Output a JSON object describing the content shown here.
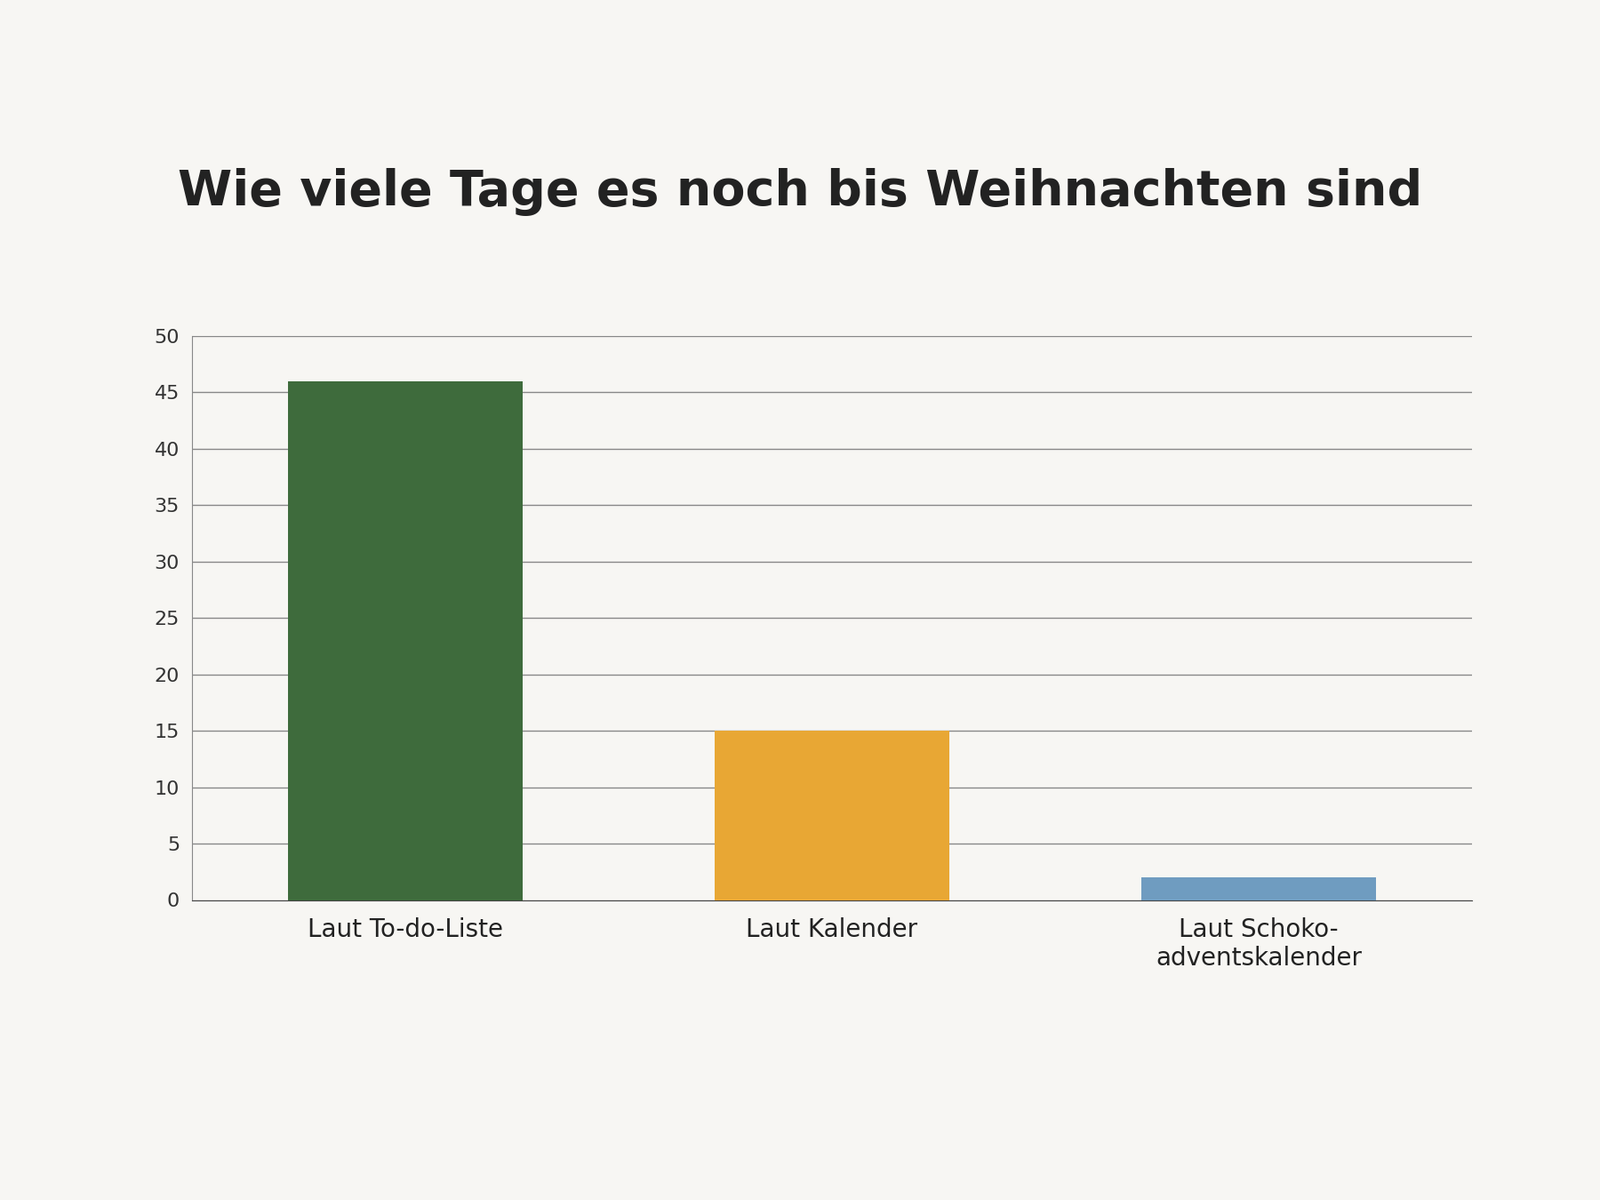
{
  "chart_data": {
    "type": "bar",
    "title": "Wie viele Tage es noch bis Weihnachten sind",
    "categories": [
      "Laut To-do-Liste",
      "Laut Kalender",
      "Laut Schoko-\nadventskalender"
    ],
    "values": [
      46,
      15,
      2
    ],
    "colors": [
      "#3e6b3c",
      "#e8a734",
      "#6f9cc0"
    ],
    "ylim": [
      0,
      50
    ],
    "yticks": [
      0,
      5,
      10,
      15,
      20,
      25,
      30,
      35,
      40,
      45,
      50
    ],
    "grid": true
  }
}
